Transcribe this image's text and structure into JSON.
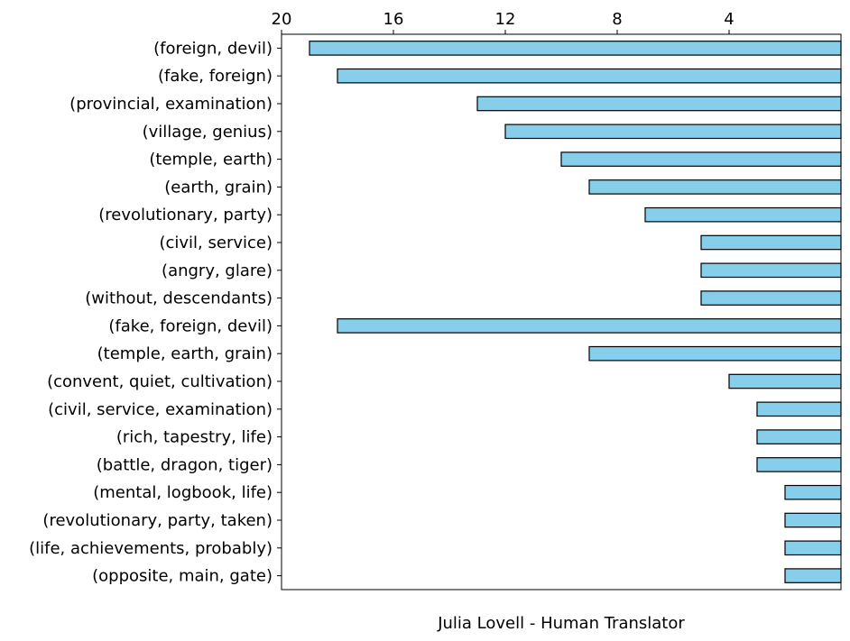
{
  "chart_data": {
    "type": "bar",
    "orientation": "horizontal",
    "x_axis_position": "top",
    "x_axis_inverted": true,
    "xlim": [
      20,
      0
    ],
    "xticks": [
      20,
      16,
      12,
      8,
      4
    ],
    "xlabel": "Julia Lovell - Human Translator",
    "bar_color": "#87ceeb",
    "edge_color": "#000000",
    "grid": false,
    "categories": [
      "(foreign, devil)",
      "(fake, foreign)",
      "(provincial, examination)",
      "(village, genius)",
      "(temple, earth)",
      "(earth, grain)",
      "(revolutionary, party)",
      "(civil, service)",
      "(angry, glare)",
      "(without, descendants)",
      "(fake, foreign, devil)",
      "(temple, earth, grain)",
      "(convent, quiet, cultivation)",
      "(civil, service, examination)",
      "(rich, tapestry, life)",
      "(battle, dragon, tiger)",
      "(mental, logbook, life)",
      "(revolutionary, party, taken)",
      "(life, achievements, probably)",
      "(opposite, main, gate)"
    ],
    "values": [
      19,
      18,
      13,
      12,
      10,
      9,
      7,
      5,
      5,
      5,
      18,
      9,
      4,
      3,
      3,
      3,
      2,
      2,
      2,
      2
    ]
  }
}
